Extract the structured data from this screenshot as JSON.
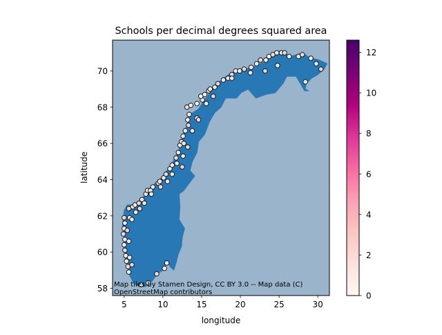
{
  "chart_data": {
    "type": "map-scatter",
    "title": "Schools per decimal degrees squared area",
    "xlabel": "longitude",
    "ylabel": "latitude",
    "xlim": [
      3.5,
      31.5
    ],
    "ylim": [
      57.6,
      71.7
    ],
    "xticks": [
      5,
      10,
      15,
      20,
      25,
      30
    ],
    "yticks": [
      58,
      60,
      62,
      64,
      66,
      68,
      70
    ],
    "attribution": [
      "Map tiles by Stamen Design, CC BY 3.0 -- Map data (C)",
      "OpenStreetMap contributors"
    ],
    "colorbar": {
      "colormap": "RdPu",
      "range": [
        0,
        12.6
      ],
      "ticks": [
        0,
        2,
        4,
        6,
        8,
        10,
        12
      ],
      "colors": [
        "#fff7f3",
        "#fde0dd",
        "#fcc5c0",
        "#fa9fb5",
        "#f768a1",
        "#dd3497",
        "#ae017e",
        "#7a0177",
        "#49006a"
      ]
    },
    "colors": {
      "sea": "#9ab4cc",
      "land": "#2878b5",
      "marker_edge": "#1a1a1a"
    },
    "coastline": [
      [
        4.9,
        61.9
      ],
      [
        5.0,
        62.3
      ],
      [
        5.4,
        62.6
      ],
      [
        6.2,
        62.6
      ],
      [
        6.9,
        62.8
      ],
      [
        7.6,
        63.1
      ],
      [
        8.2,
        63.5
      ],
      [
        9.0,
        63.8
      ],
      [
        9.8,
        64.1
      ],
      [
        10.5,
        64.5
      ],
      [
        11.3,
        65.0
      ],
      [
        12.2,
        65.8
      ],
      [
        12.6,
        66.5
      ],
      [
        13.2,
        67.1
      ],
      [
        13.5,
        67.6
      ],
      [
        14.6,
        67.9
      ],
      [
        15.2,
        68.3
      ],
      [
        15.9,
        68.7
      ],
      [
        16.6,
        69.1
      ],
      [
        17.5,
        69.5
      ],
      [
        18.5,
        69.8
      ],
      [
        19.5,
        70.0
      ],
      [
        20.5,
        70.1
      ],
      [
        21.5,
        70.2
      ],
      [
        22.6,
        70.4
      ],
      [
        23.5,
        70.6
      ],
      [
        24.3,
        70.9
      ],
      [
        25.1,
        71.1
      ],
      [
        25.7,
        71.0
      ],
      [
        26.4,
        70.8
      ],
      [
        27.3,
        70.9
      ],
      [
        28.1,
        71.0
      ],
      [
        28.7,
        70.8
      ],
      [
        29.4,
        70.7
      ],
      [
        30.2,
        70.6
      ],
      [
        31.2,
        70.4
      ],
      [
        30.8,
        70.1
      ],
      [
        30.0,
        69.8
      ],
      [
        29.2,
        69.6
      ],
      [
        28.5,
        69.3
      ],
      [
        28.4,
        69.0
      ],
      [
        28.8,
        68.9
      ],
      [
        28.3,
        68.9
      ],
      [
        27.2,
        69.7
      ],
      [
        26.0,
        69.7
      ],
      [
        25.5,
        69.3
      ],
      [
        24.5,
        68.8
      ],
      [
        23.3,
        68.7
      ],
      [
        22.0,
        68.5
      ],
      [
        21.0,
        69.0
      ],
      [
        20.1,
        68.8
      ],
      [
        19.5,
        68.5
      ],
      [
        18.1,
        68.5
      ],
      [
        17.5,
        68.0
      ],
      [
        16.7,
        67.7
      ],
      [
        16.0,
        67.2
      ],
      [
        15.4,
        66.5
      ],
      [
        14.6,
        66.1
      ],
      [
        14.4,
        65.5
      ],
      [
        13.8,
        65.0
      ],
      [
        13.5,
        64.5
      ],
      [
        14.1,
        64.2
      ],
      [
        13.4,
        63.8
      ],
      [
        12.7,
        63.4
      ],
      [
        12.1,
        63.2
      ],
      [
        12.2,
        62.5
      ],
      [
        12.1,
        61.8
      ],
      [
        12.8,
        61.3
      ],
      [
        12.5,
        60.8
      ],
      [
        12.4,
        60.3
      ],
      [
        12.0,
        59.9
      ],
      [
        11.7,
        59.4
      ],
      [
        11.4,
        59.0
      ],
      [
        10.9,
        59.2
      ],
      [
        10.6,
        59.6
      ],
      [
        10.0,
        59.0
      ],
      [
        9.3,
        58.8
      ],
      [
        8.6,
        58.4
      ],
      [
        7.8,
        58.1
      ],
      [
        6.9,
        58.1
      ],
      [
        6.2,
        58.3
      ],
      [
        5.6,
        58.8
      ],
      [
        5.6,
        59.3
      ],
      [
        5.2,
        59.6
      ],
      [
        5.0,
        60.1
      ],
      [
        5.1,
        60.6
      ],
      [
        4.9,
        61.1
      ],
      [
        4.8,
        61.5
      ]
    ],
    "points": [
      [
        5.0,
        61.9
      ],
      [
        5.1,
        61.6
      ],
      [
        5.0,
        61.3
      ],
      [
        4.9,
        61.0
      ],
      [
        5.1,
        60.7
      ],
      [
        5.0,
        60.4
      ],
      [
        5.1,
        60.1
      ],
      [
        5.2,
        59.8
      ],
      [
        5.3,
        59.5
      ],
      [
        5.5,
        59.2
      ],
      [
        5.6,
        58.9
      ],
      [
        5.7,
        61.9
      ],
      [
        5.6,
        62.4
      ],
      [
        6.1,
        62.5
      ],
      [
        6.4,
        62.6
      ],
      [
        6.9,
        62.7
      ],
      [
        7.3,
        62.9
      ],
      [
        7.8,
        63.2
      ],
      [
        8.0,
        63.4
      ],
      [
        8.4,
        63.4
      ],
      [
        8.7,
        63.6
      ],
      [
        9.4,
        63.8
      ],
      [
        9.6,
        63.9
      ],
      [
        10.1,
        64.1
      ],
      [
        10.4,
        64.3
      ],
      [
        10.9,
        64.6
      ],
      [
        11.2,
        64.8
      ],
      [
        11.7,
        65.2
      ],
      [
        12.0,
        65.5
      ],
      [
        12.2,
        65.9
      ],
      [
        12.4,
        66.1
      ],
      [
        12.6,
        66.4
      ],
      [
        12.9,
        66.7
      ],
      [
        13.3,
        67.0
      ],
      [
        13.2,
        67.3
      ],
      [
        13.4,
        67.6
      ],
      [
        13.1,
        68.0
      ],
      [
        13.6,
        68.1
      ],
      [
        14.4,
        68.2
      ],
      [
        15.1,
        68.4
      ],
      [
        14.9,
        68.6
      ],
      [
        15.4,
        68.7
      ],
      [
        15.9,
        68.9
      ],
      [
        16.1,
        69.0
      ],
      [
        16.7,
        69.1
      ],
      [
        17.1,
        69.3
      ],
      [
        17.8,
        69.5
      ],
      [
        18.4,
        69.6
      ],
      [
        18.9,
        69.8
      ],
      [
        19.4,
        70.0
      ],
      [
        19.9,
        70.0
      ],
      [
        20.5,
        70.1
      ],
      [
        21.4,
        70.2
      ],
      [
        22.1,
        70.4
      ],
      [
        22.6,
        70.6
      ],
      [
        23.3,
        70.6
      ],
      [
        23.7,
        70.8
      ],
      [
        24.2,
        70.9
      ],
      [
        24.7,
        71.0
      ],
      [
        25.3,
        71.0
      ],
      [
        25.7,
        71.0
      ],
      [
        26.3,
        70.8
      ],
      [
        27.5,
        70.8
      ],
      [
        28.0,
        70.9
      ],
      [
        29.1,
        70.7
      ],
      [
        29.8,
        70.4
      ],
      [
        30.4,
        70.1
      ],
      [
        28.4,
        69.4
      ],
      [
        24.8,
        70.3
      ],
      [
        23.2,
        70.0
      ],
      [
        21.3,
        69.9
      ],
      [
        18.9,
        69.6
      ],
      [
        16.5,
        68.6
      ],
      [
        15.6,
        68.2
      ],
      [
        14.4,
        67.4
      ],
      [
        14.6,
        67.3
      ],
      [
        13.8,
        66.7
      ],
      [
        12.7,
        66.0
      ],
      [
        13.2,
        65.8
      ],
      [
        12.6,
        65.3
      ],
      [
        11.8,
        64.9
      ],
      [
        12.5,
        64.7
      ],
      [
        11.2,
        64.3
      ],
      [
        10.6,
        63.9
      ],
      [
        9.7,
        63.6
      ],
      [
        8.5,
        63.2
      ],
      [
        7.6,
        62.7
      ],
      [
        7.0,
        62.4
      ],
      [
        6.5,
        62.2
      ],
      [
        6.0,
        61.8
      ],
      [
        5.4,
        61.2
      ],
      [
        5.6,
        60.6
      ],
      [
        5.7,
        59.7
      ],
      [
        6.0,
        59.3
      ],
      [
        7.2,
        58.2
      ],
      [
        8.1,
        58.3
      ],
      [
        9.2,
        58.8
      ],
      [
        10.2,
        59.1
      ],
      [
        10.5,
        59.4
      ]
    ]
  }
}
